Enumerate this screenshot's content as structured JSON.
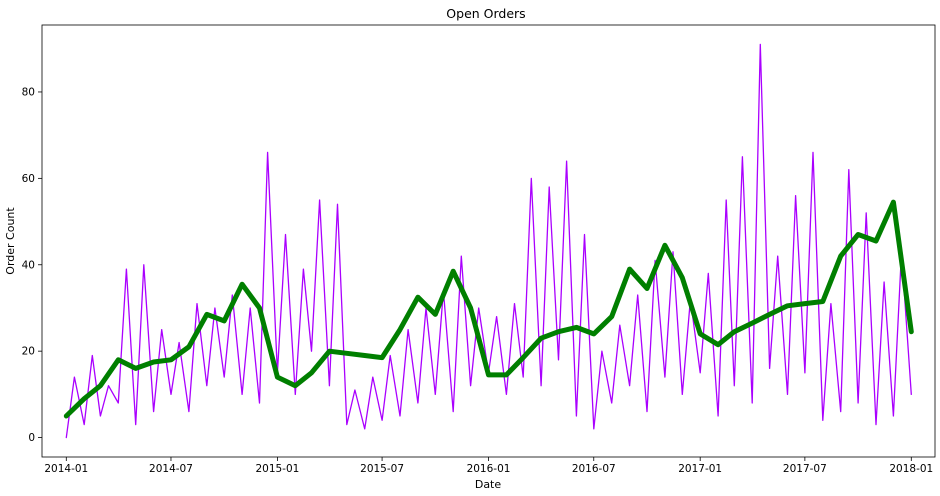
{
  "chart_data": {
    "type": "line",
    "title": "Open Orders",
    "xlabel": "Date",
    "ylabel": "Order Count",
    "xlim": [
      "2013-11-20",
      "2018-02-11"
    ],
    "ylim": [
      -4.5,
      95.5
    ],
    "grid": false,
    "x_ticks": [
      "2014-01",
      "2014-07",
      "2015-01",
      "2015-07",
      "2016-01",
      "2016-07",
      "2017-01",
      "2017-07",
      "2018-01"
    ],
    "y_ticks": [
      0,
      20,
      40,
      60,
      80
    ],
    "colors": {
      "raw": "#aa00ff",
      "smooth": "#007f00"
    },
    "series": [
      {
        "style": "raw",
        "x": [
          "2014-01-01",
          "2014-01-15",
          "2014-02-01",
          "2014-02-15",
          "2014-03-01",
          "2014-03-15",
          "2014-04-01",
          "2014-04-15",
          "2014-05-01",
          "2014-05-15",
          "2014-06-01",
          "2014-06-15",
          "2014-07-01",
          "2014-07-15",
          "2014-08-01",
          "2014-08-15",
          "2014-09-01",
          "2014-09-15",
          "2014-10-01",
          "2014-10-15",
          "2014-11-01",
          "2014-11-15",
          "2014-12-01",
          "2014-12-15",
          "2015-01-01",
          "2015-01-15",
          "2015-02-01",
          "2015-02-15",
          "2015-03-01",
          "2015-03-15",
          "2015-04-01",
          "2015-04-15",
          "2015-05-01",
          "2015-05-15",
          "2015-06-01",
          "2015-06-15",
          "2015-07-01",
          "2015-07-15",
          "2015-08-01",
          "2015-08-15",
          "2015-09-01",
          "2015-09-15",
          "2015-10-01",
          "2015-10-15",
          "2015-11-01",
          "2015-11-15",
          "2015-12-01",
          "2015-12-15",
          "2016-01-01",
          "2016-01-15",
          "2016-02-01",
          "2016-02-15",
          "2016-03-01",
          "2016-03-15",
          "2016-04-01",
          "2016-04-15",
          "2016-05-01",
          "2016-05-15",
          "2016-06-01",
          "2016-06-15",
          "2016-07-01",
          "2016-07-15",
          "2016-08-01",
          "2016-08-15",
          "2016-09-01",
          "2016-09-15",
          "2016-10-01",
          "2016-10-15",
          "2016-11-01",
          "2016-11-15",
          "2016-12-01",
          "2016-12-15",
          "2017-01-01",
          "2017-01-15",
          "2017-02-01",
          "2017-02-15",
          "2017-03-01",
          "2017-03-15",
          "2017-04-01",
          "2017-04-15",
          "2017-05-01",
          "2017-05-15",
          "2017-06-01",
          "2017-06-15",
          "2017-07-01",
          "2017-07-15",
          "2017-08-01",
          "2017-08-15",
          "2017-09-01",
          "2017-09-15",
          "2017-10-01",
          "2017-10-15",
          "2017-11-01",
          "2017-11-15",
          "2017-12-01",
          "2017-12-15",
          "2018-01-01"
        ],
        "y": [
          0,
          14,
          3,
          19,
          5,
          12,
          8,
          39,
          3,
          40,
          6,
          25,
          10,
          22,
          6,
          31,
          12,
          30,
          14,
          33,
          10,
          30,
          8,
          66,
          15,
          47,
          10,
          39,
          20,
          55,
          12,
          54,
          3,
          11,
          2,
          14,
          4,
          19,
          5,
          25,
          8,
          30,
          10,
          34,
          6,
          42,
          12,
          30,
          15,
          28,
          10,
          31,
          14,
          60,
          12,
          58,
          18,
          64,
          5,
          47,
          2,
          20,
          8,
          26,
          12,
          33,
          6,
          41,
          14,
          43,
          10,
          32,
          15,
          38,
          5,
          55,
          12,
          65,
          8,
          91,
          16,
          42,
          10,
          56,
          15,
          66,
          4,
          31,
          6,
          62,
          8,
          52,
          3,
          36,
          5,
          43,
          10
        ]
      },
      {
        "style": "smooth",
        "x": [
          "2014-01-01",
          "2014-02-01",
          "2014-03-01",
          "2014-04-01",
          "2014-05-01",
          "2014-06-01",
          "2014-07-01",
          "2014-08-01",
          "2014-09-01",
          "2014-10-01",
          "2014-11-01",
          "2014-12-01",
          "2015-01-01",
          "2015-02-01",
          "2015-03-01",
          "2015-04-01",
          "2015-05-01",
          "2015-06-01",
          "2015-07-01",
          "2015-08-01",
          "2015-09-01",
          "2015-10-01",
          "2015-11-01",
          "2015-12-01",
          "2016-01-01",
          "2016-02-01",
          "2016-03-01",
          "2016-04-01",
          "2016-05-01",
          "2016-06-01",
          "2016-07-01",
          "2016-08-01",
          "2016-09-01",
          "2016-10-01",
          "2016-11-01",
          "2016-12-01",
          "2017-01-01",
          "2017-02-01",
          "2017-03-01",
          "2017-04-01",
          "2017-05-01",
          "2017-06-01",
          "2017-07-01",
          "2017-08-01",
          "2017-09-01",
          "2017-10-01",
          "2017-11-01",
          "2017-12-01",
          "2018-01-01"
        ],
        "y": [
          5,
          9,
          12,
          18,
          16,
          17.5,
          18,
          21,
          28.5,
          27,
          35.5,
          30,
          14,
          12,
          15,
          20,
          19.5,
          19,
          18.5,
          25,
          32.5,
          28.5,
          38.5,
          30,
          14.5,
          14.5,
          18.5,
          23,
          24.5,
          25.5,
          24,
          28,
          39,
          34.5,
          44.5,
          37,
          24,
          21.5,
          24.5,
          26.5,
          28.5,
          30.5,
          31,
          31.5,
          42,
          47,
          45.5,
          54.5,
          24.5
        ]
      }
    ]
  }
}
